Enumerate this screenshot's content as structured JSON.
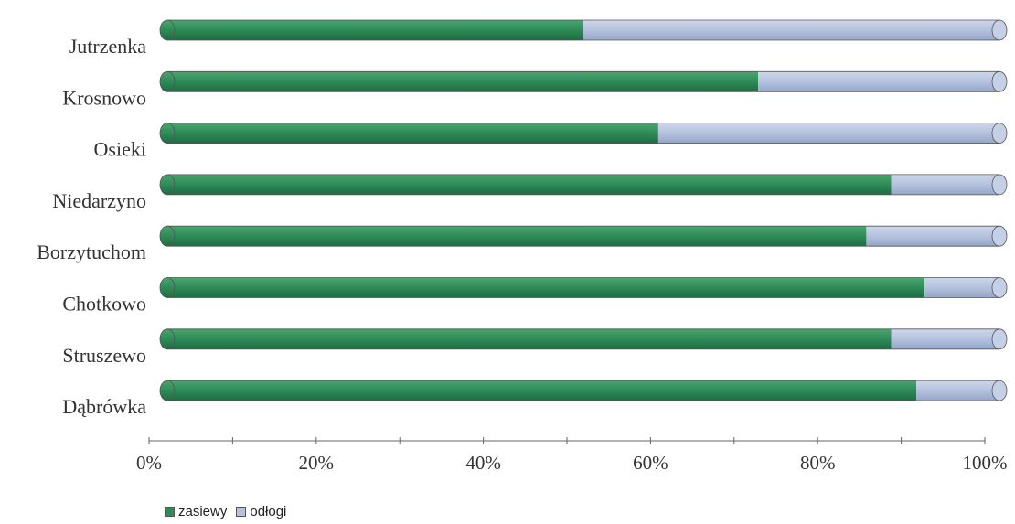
{
  "chart_data": {
    "type": "bar",
    "orientation": "horizontal",
    "stacked": "percent",
    "categories": [
      "Jutrzenka",
      "Krosnowo",
      "Osieki",
      "Niedarzyno",
      "Borzytuchom",
      "Chotkowo",
      "Struszewo",
      "Dąbrówka"
    ],
    "series": [
      {
        "name": "zasiewy",
        "values": [
          50,
          71,
          59,
          87,
          84,
          91,
          87,
          90
        ],
        "color": "#2e8b57"
      },
      {
        "name": "odłogi",
        "values": [
          50,
          29,
          41,
          13,
          16,
          9,
          13,
          10
        ],
        "color": "#b4c2de"
      }
    ],
    "xlim": [
      0,
      100
    ],
    "x_ticks": [
      "0%",
      "20%",
      "40%",
      "60%",
      "80%",
      "100%"
    ],
    "grid": false,
    "legend": "bottom-left"
  }
}
